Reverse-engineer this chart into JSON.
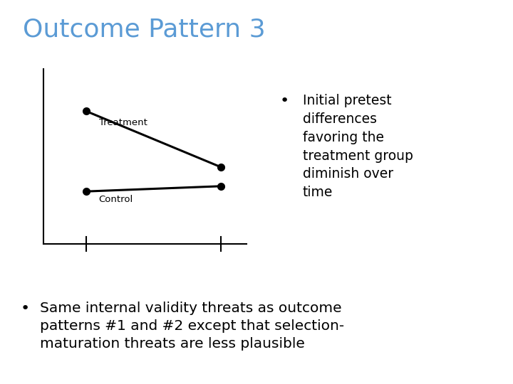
{
  "title": "Outcome Pattern 3",
  "title_color": "#5b9bd5",
  "title_fontsize": 26,
  "background_color": "#ffffff",
  "treatment_label": "Treatment",
  "control_label": "Control",
  "line_color": "#000000",
  "line_width": 2.2,
  "marker_size": 7,
  "label_fontsize": 9.5,
  "bullet1_text": "Initial pretest\ndifferences\nfavoring the\ntreatment group\ndiminish over\ntime",
  "bullet1_fontsize": 13.5,
  "bullet2_text": "Same internal validity threats as outcome\npatterns #1 and #2 except that selection-\nmaturation threats are less plausible",
  "bullet2_fontsize": 14.5
}
